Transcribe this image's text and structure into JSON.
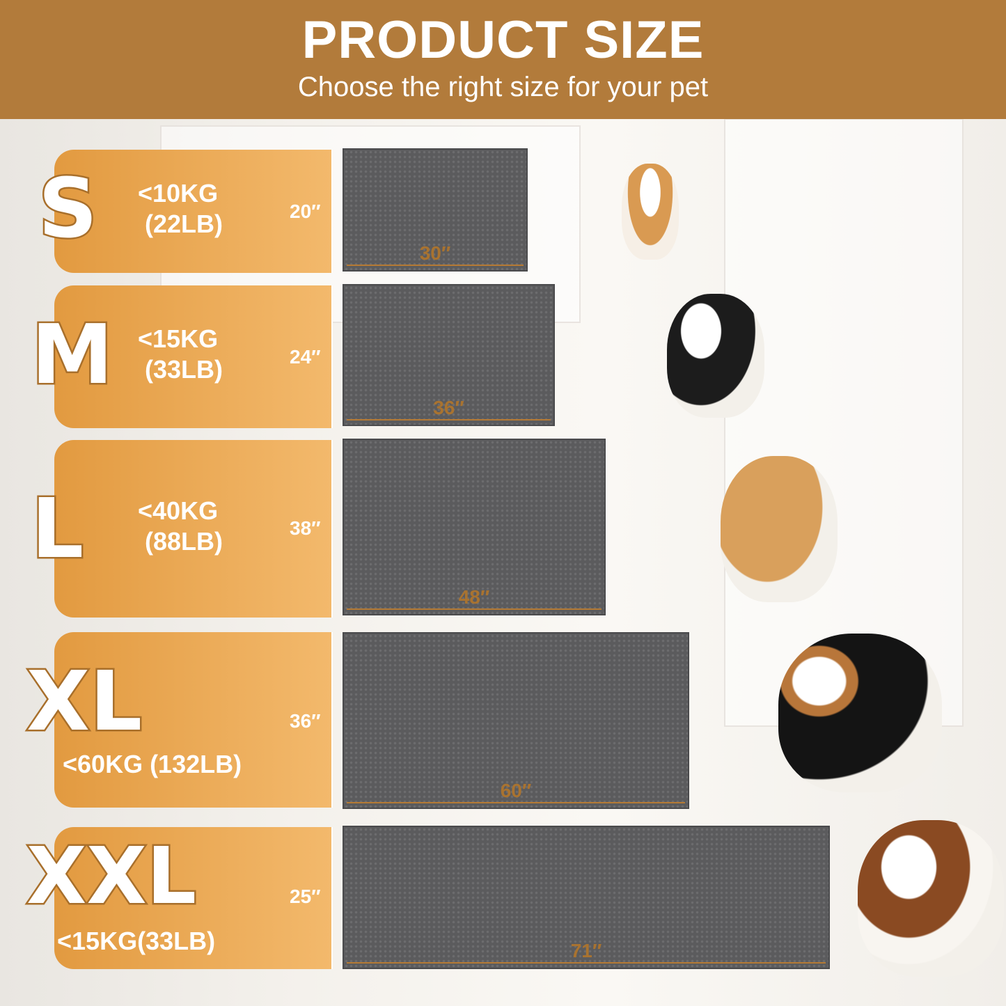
{
  "header": {
    "title": "PRODUCT SIZE",
    "subtitle": "Choose the right size for your pet"
  },
  "colors": {
    "header": "#b27b3b",
    "panel": "#e9a650",
    "mat": "#5b5b5d",
    "accent": "#a97330"
  },
  "sizes": [
    {
      "size": "S",
      "weight": "<10KG\n (22LB)",
      "height": "20″",
      "width": "30″",
      "dog": "corgi"
    },
    {
      "size": "M",
      "weight": "<15KG\n (33LB)",
      "height": "24″",
      "width": "36″",
      "dog": "border collie"
    },
    {
      "size": "L",
      "weight": "<40KG\n (88LB)",
      "height": "38″",
      "width": "48″",
      "dog": "golden retriever"
    },
    {
      "size": "XL",
      "weight": "<60KG (132LB)",
      "height": "36″",
      "width": "60″",
      "dog": "bernese mountain dog"
    },
    {
      "size": "XXL",
      "weight": "<15KG(33LB)",
      "height": "25″",
      "width": "71″",
      "dog": "saint bernard"
    }
  ]
}
